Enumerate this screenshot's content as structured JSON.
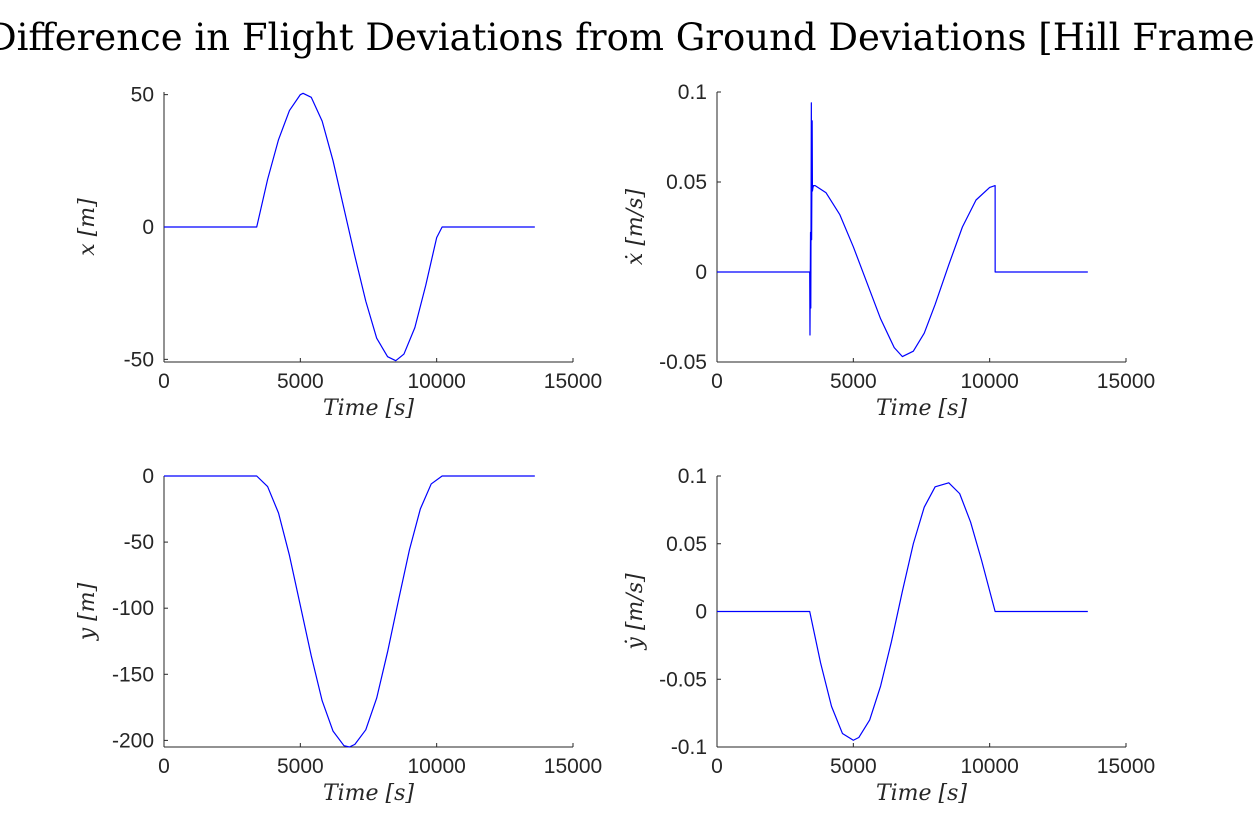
{
  "figure": {
    "title": "Difference in Flight Deviations from Ground Deviations [Hill Frame]"
  },
  "colors": {
    "series": "#0000ff",
    "axis": "#262626"
  },
  "chart_data": [
    {
      "type": "line",
      "xlabel": "Time [s]",
      "ylabel": "x [m]",
      "xlim": [
        0,
        15000
      ],
      "ylim": [
        -51,
        51
      ],
      "xticks": [
        0,
        5000,
        10000,
        15000
      ],
      "xtick_labels": [
        "0",
        "5000",
        "10000",
        "15000"
      ],
      "yticks": [
        -50,
        0,
        50
      ],
      "ytick_labels": [
        "-50",
        "0",
        "50"
      ],
      "grid": false,
      "series": [
        {
          "x": [
            0,
            3400,
            3800,
            4200,
            4600,
            5000,
            5100,
            5400,
            5800,
            6200,
            6600,
            7000,
            7400,
            7800,
            8200,
            8500,
            8800,
            9200,
            9600,
            10000,
            10200,
            11000,
            12000,
            13600
          ],
          "y": [
            0,
            0,
            18,
            33,
            44,
            50,
            50.5,
            49,
            40,
            25,
            7,
            -11,
            -28,
            -42,
            -49,
            -50.5,
            -48,
            -38,
            -22,
            -4,
            0,
            0,
            0,
            0
          ]
        }
      ]
    },
    {
      "type": "line",
      "xlabel": "Time [s]",
      "ylabel": "ẋ [m/s]",
      "xlim": [
        0,
        15000
      ],
      "ylim": [
        -0.05,
        0.1
      ],
      "xticks": [
        0,
        5000,
        10000,
        15000
      ],
      "xtick_labels": [
        "0",
        "5000",
        "10000",
        "15000"
      ],
      "yticks": [
        -0.05,
        0,
        0.05,
        0.1
      ],
      "ytick_labels": [
        "-0.05",
        "0",
        "0.05",
        "0.1"
      ],
      "grid": false,
      "series": [
        {
          "x": [
            0,
            3400,
            3410,
            3430,
            3440,
            3460,
            3470,
            3490,
            3500,
            3520,
            3540,
            3600,
            4000,
            4500,
            5000,
            5500,
            6000,
            6500,
            6800,
            7200,
            7600,
            8000,
            8500,
            9000,
            9500,
            10000,
            10200,
            10201,
            11000,
            12000,
            13600
          ],
          "y": [
            0,
            0,
            -0.035,
            0.022,
            -0.02,
            0.094,
            0.018,
            0.084,
            0.045,
            0.047,
            0.048,
            0.048,
            0.044,
            0.032,
            0.014,
            -0.006,
            -0.026,
            -0.042,
            -0.047,
            -0.044,
            -0.034,
            -0.018,
            0.004,
            0.025,
            0.04,
            0.047,
            0.048,
            0,
            0,
            0,
            0
          ]
        }
      ]
    },
    {
      "type": "line",
      "xlabel": "Time [s]",
      "ylabel": "y [m]",
      "xlim": [
        0,
        15000
      ],
      "ylim": [
        -205,
        0
      ],
      "xticks": [
        0,
        5000,
        10000,
        15000
      ],
      "xtick_labels": [
        "0",
        "5000",
        "10000",
        "15000"
      ],
      "yticks": [
        -200,
        -150,
        -100,
        -50,
        0
      ],
      "ytick_labels": [
        "-200",
        "-150",
        "-100",
        "-50",
        "0"
      ],
      "grid": false,
      "series": [
        {
          "x": [
            0,
            3400,
            3800,
            4200,
            4600,
            5000,
            5400,
            5800,
            6200,
            6600,
            6800,
            7000,
            7400,
            7800,
            8200,
            8600,
            9000,
            9400,
            9800,
            10200,
            11000,
            12000,
            13600
          ],
          "y": [
            0,
            0,
            -8,
            -28,
            -60,
            -98,
            -136,
            -170,
            -193,
            -204,
            -205,
            -203,
            -192,
            -168,
            -133,
            -94,
            -56,
            -25,
            -6,
            0,
            0,
            0,
            0
          ]
        }
      ]
    },
    {
      "type": "line",
      "xlabel": "Time [s]",
      "ylabel": "ẏ [m/s]",
      "xlim": [
        0,
        15000
      ],
      "ylim": [
        -0.1,
        0.1
      ],
      "xticks": [
        0,
        5000,
        10000,
        15000
      ],
      "xtick_labels": [
        "0",
        "5000",
        "10000",
        "15000"
      ],
      "yticks": [
        -0.1,
        -0.05,
        0,
        0.05,
        0.1
      ],
      "ytick_labels": [
        "-0.1",
        "-0.05",
        "0",
        "0.05",
        "0.1"
      ],
      "grid": false,
      "series": [
        {
          "x": [
            0,
            3400,
            3800,
            4200,
            4600,
            5000,
            5200,
            5600,
            6000,
            6400,
            6800,
            7200,
            7600,
            8000,
            8500,
            8900,
            9300,
            9700,
            10200,
            11000,
            12000,
            13600
          ],
          "y": [
            0,
            0,
            -0.038,
            -0.07,
            -0.09,
            -0.095,
            -0.093,
            -0.08,
            -0.055,
            -0.022,
            0.015,
            0.05,
            0.077,
            0.092,
            0.095,
            0.087,
            0.066,
            0.038,
            0,
            0,
            0,
            0
          ]
        }
      ]
    }
  ]
}
